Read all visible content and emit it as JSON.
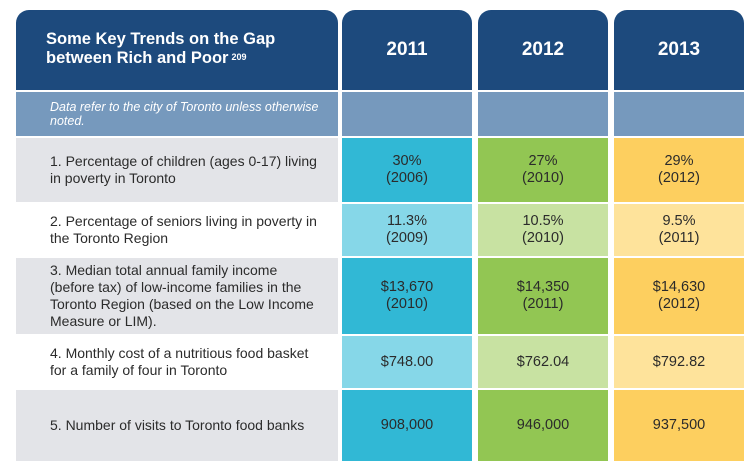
{
  "header": {
    "title": "Some Key Trends on the Gap between Rich and Poor",
    "footnote": "209",
    "years": [
      "2011",
      "2012",
      "2013"
    ]
  },
  "note": "Data refer to the city of Toronto unless otherwise noted.",
  "colors": {
    "navy": "#1d4a7d",
    "subheader": "#7699bd",
    "cyan": "#31b8d5",
    "green": "#92c653",
    "yellow": "#fdcf5f"
  },
  "rows": [
    {
      "label": "1. Percentage of children (ages 0-17) living in poverty in Toronto",
      "values": [
        {
          "v": "30%",
          "d": "(2006)"
        },
        {
          "v": "27%",
          "d": "(2010)"
        },
        {
          "v": "29%",
          "d": "(2012)"
        }
      ]
    },
    {
      "label": "2. Percentage of seniors living in poverty in the Toronto Region",
      "values": [
        {
          "v": "11.3%",
          "d": "(2009)"
        },
        {
          "v": "10.5%",
          "d": "(2010)"
        },
        {
          "v": "9.5%",
          "d": "(2011)"
        }
      ]
    },
    {
      "label": "3. Median total annual family income (before tax) of low-income families in the Toronto Region (based on the Low Income Measure or LIM).",
      "values": [
        {
          "v": "$13,670",
          "d": "(2010)"
        },
        {
          "v": "$14,350",
          "d": "(2011)"
        },
        {
          "v": "$14,630",
          "d": "(2012)"
        }
      ]
    },
    {
      "label": "4. Monthly cost of a nutritious food basket for a family of four in Toronto",
      "values": [
        {
          "v": "$748.00"
        },
        {
          "v": "$762.04"
        },
        {
          "v": "$792.82"
        }
      ]
    },
    {
      "label": "5. Number of visits to Toronto food banks",
      "values": [
        {
          "v": "908,000"
        },
        {
          "v": "946,000"
        },
        {
          "v": "937,500"
        }
      ]
    }
  ]
}
